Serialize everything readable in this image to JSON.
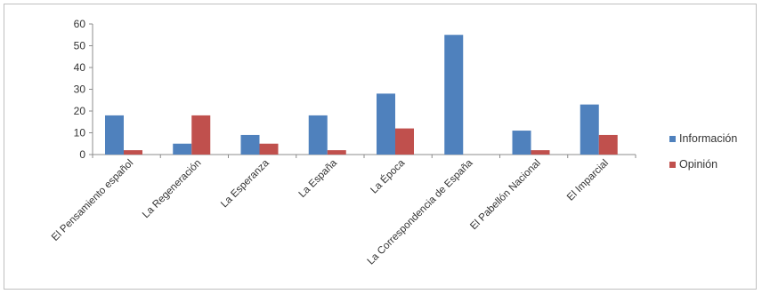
{
  "chart_data": {
    "type": "bar",
    "title": "",
    "xlabel": "",
    "ylabel": "",
    "ylim": [
      0,
      60
    ],
    "yticks": [
      0,
      10,
      20,
      30,
      40,
      50,
      60
    ],
    "grid": false,
    "legend_position": "right",
    "categories": [
      "El Pensamiento español",
      "La Regeneración",
      "La Esperanza",
      "La España",
      "La Época",
      "La Correspondencia de España",
      "El Pabellón Nacional",
      "El Imparcial"
    ],
    "series": [
      {
        "name": "Información",
        "color": "#4f81bd",
        "values": [
          18,
          5,
          9,
          18,
          28,
          55,
          11,
          23
        ]
      },
      {
        "name": "Opinión",
        "color": "#c0504d",
        "values": [
          2,
          18,
          5,
          2,
          12,
          0,
          2,
          9
        ]
      }
    ]
  }
}
